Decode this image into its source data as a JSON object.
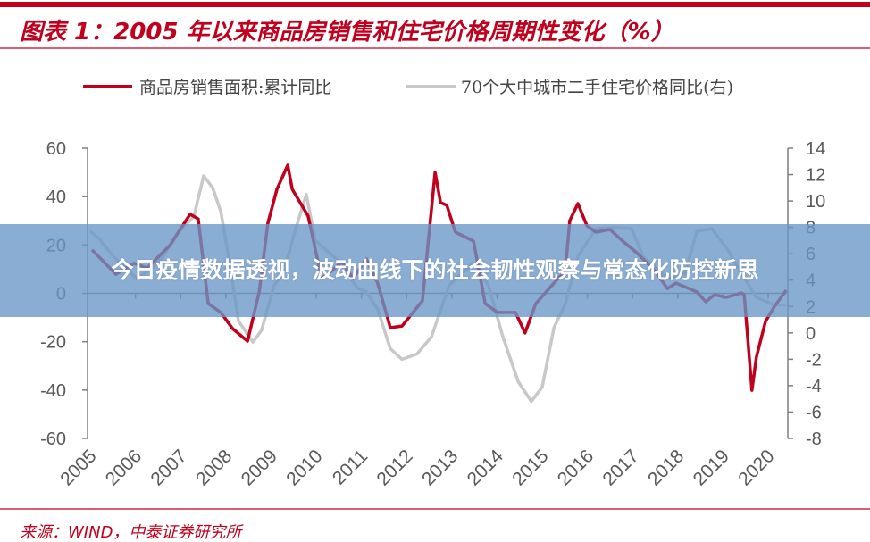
{
  "header": {
    "title": "图表 1：2005 年以来商品房销售和住宅价格周期性变化（%）"
  },
  "footer": {
    "source": "来源：WIND，中泰证券研究所"
  },
  "overlay": {
    "headline": "今日疫情数据透视，波动曲线下的社会韧性观察与常态化防控新思"
  },
  "colors": {
    "brand": "#c0001c",
    "series_red": "#c0001c",
    "series_gray": "#c8c8c8",
    "axis": "#7f7f7f",
    "banner": "#6996c8"
  },
  "chart_data": {
    "type": "line",
    "title": "图表 1：2005 年以来商品房销售和住宅价格周期性变化（%）",
    "legend_position": "top",
    "grid": false,
    "x_tick_labels": [
      "2005",
      "2006",
      "2007",
      "2008",
      "2009",
      "2010",
      "2011",
      "2012",
      "2013",
      "2014",
      "2015",
      "2016",
      "2017",
      "2018",
      "2019",
      "2020"
    ],
    "xlim": [
      2005,
      2020.55
    ],
    "y_left": {
      "ylim": [
        -60,
        60
      ],
      "ticks": [
        60,
        40,
        20,
        0,
        -20,
        -40,
        -60
      ]
    },
    "y_right": {
      "ylim": [
        -8,
        14
      ],
      "ticks": [
        14,
        12,
        10,
        8,
        6,
        4,
        2,
        0,
        -2,
        -4,
        -6,
        -8
      ]
    },
    "series": [
      {
        "name": "商品房销售面积:累计同比",
        "axis": "left",
        "color": "#c0001c",
        "x": [
          2005.04,
          2005.57,
          2005.97,
          2006.26,
          2006.76,
          2007.21,
          2007.39,
          2007.61,
          2007.89,
          2008.15,
          2008.48,
          2008.74,
          2008.93,
          2009.13,
          2009.37,
          2009.47,
          2009.82,
          2010.12,
          2010.38,
          2010.57,
          2010.81,
          2011.11,
          2011.36,
          2011.64,
          2011.9,
          2012.35,
          2012.63,
          2012.75,
          2012.89,
          2013.08,
          2013.48,
          2013.74,
          2014.01,
          2014.41,
          2014.62,
          2014.86,
          2015.26,
          2015.51,
          2015.61,
          2015.79,
          2015.99,
          2016.19,
          2016.5,
          2016.78,
          2017.09,
          2017.49,
          2017.77,
          2017.96,
          2018.42,
          2018.62,
          2018.81,
          2019.07,
          2019.41,
          2019.47,
          2019.64,
          2019.74,
          2019.94,
          2020.14,
          2020.4
        ],
        "values": [
          18,
          7.9,
          12.4,
          10.5,
          19.8,
          32.7,
          30.8,
          -4.2,
          -7.9,
          -14.6,
          -19.8,
          0.6,
          29,
          43,
          53,
          43,
          32,
          6.1,
          9.8,
          13.1,
          6.1,
          14.2,
          4.2,
          -14.2,
          -13.5,
          -3.1,
          50,
          37.5,
          36.4,
          25.3,
          21.6,
          -4.2,
          -7.9,
          -7.9,
          -16.4,
          -4.2,
          4.2,
          9.4,
          30.1,
          37.1,
          27.9,
          25.3,
          26.4,
          21.6,
          16.8,
          9.4,
          2,
          4.2,
          0.6,
          -3.5,
          -0.6,
          -1.7,
          0.2,
          -0.6,
          -40.1,
          -26.4,
          -11.6,
          -5.4,
          1.3
        ]
      },
      {
        "name": "70个大中城市二手住宅价格同比(右)",
        "axis": "right",
        "color": "#c8c8c8",
        "x": [
          2005.0,
          2005.18,
          2005.51,
          2006.03,
          2006.36,
          2006.62,
          2006.96,
          2007.29,
          2007.51,
          2007.71,
          2007.89,
          2008.08,
          2008.28,
          2008.6,
          2008.79,
          2009.07,
          2009.27,
          2009.53,
          2009.78,
          2009.98,
          2010.51,
          2010.91,
          2011.11,
          2011.36,
          2011.64,
          2011.9,
          2012.23,
          2012.55,
          2012.94,
          2013.48,
          2013.81,
          2014.13,
          2014.47,
          2014.76,
          2015.0,
          2015.26,
          2015.51,
          2015.79,
          2016.19,
          2016.58,
          2016.98,
          2017.23,
          2017.77,
          2018.16,
          2018.42,
          2018.75,
          2019.07,
          2019.41,
          2019.74,
          2020.14,
          2020.4
        ],
        "values": [
          7.7,
          7.2,
          5.8,
          4.1,
          4.9,
          5.8,
          7.7,
          8.8,
          11.9,
          11.0,
          9.2,
          5.4,
          0.9,
          -0.7,
          0.2,
          3.6,
          4.5,
          7.7,
          10.5,
          7.0,
          5.4,
          3.4,
          3.1,
          1.8,
          -1.2,
          -2.0,
          -1.6,
          -0.3,
          3.6,
          5.3,
          3.6,
          -0.3,
          -3.7,
          -5.2,
          -4.1,
          0.4,
          2.2,
          5.8,
          7.9,
          8.0,
          7.9,
          5.8,
          4.1,
          4.5,
          7.7,
          7.9,
          6.5,
          4.5,
          2.7,
          2.1,
          2.1
        ]
      }
    ]
  }
}
